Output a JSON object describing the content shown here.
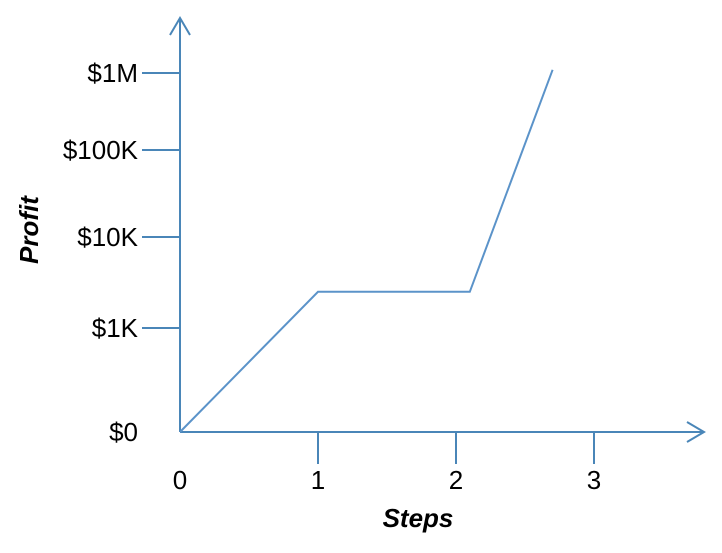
{
  "colors": {
    "axis": "#4a86b8",
    "line": "#5b93c9",
    "text": "#000000"
  },
  "chart_data": {
    "type": "line",
    "xlabel": "Steps",
    "ylabel": "Profit",
    "x_ticks": [
      "0",
      "1",
      "2",
      "3"
    ],
    "y_ticks": [
      "$0",
      "$1K",
      "$10K",
      "$100K",
      "$1M"
    ],
    "y_scale": "piecewise-log",
    "grid": false,
    "series": [
      {
        "points": [
          {
            "x": 0,
            "y": 0
          },
          {
            "x": 1,
            "y": 2500
          },
          {
            "x": 2.1,
            "y": 2500
          },
          {
            "x": 2.7,
            "y": 1100000
          }
        ]
      }
    ]
  }
}
